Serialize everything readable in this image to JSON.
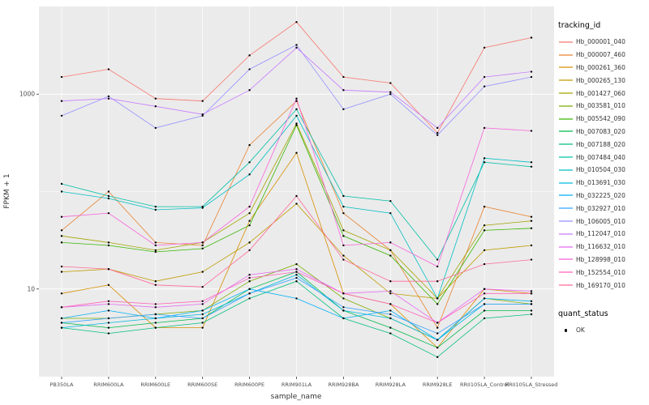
{
  "figure": {
    "background": "#FFFFFF",
    "panel_background": "#EBEBEB",
    "grid_color": "#FFFFFF",
    "tick_color": "#333333",
    "label_color": "#4D4D4D",
    "point_color": "#000000"
  },
  "axes": {
    "x_label": "sample_name",
    "y_label": "FPKM + 1",
    "y_tick_labels": [
      "10",
      "1000"
    ]
  },
  "legend": {
    "tracking_title": "tracking_id",
    "quant_title": "quant_status",
    "quant_items": [
      {
        "label": "OK"
      }
    ]
  },
  "chart_data": {
    "type": "line",
    "title": "",
    "xlabel": "sample_name",
    "ylabel": "FPKM + 1",
    "y_scale": "log10",
    "ylog_range": [
      0.1,
      3.9
    ],
    "y_major_log10": [
      1,
      3
    ],
    "y_minor_log10": [
      0,
      2,
      4
    ],
    "y_ticks": [
      10,
      1000
    ],
    "grid": true,
    "legend_position": "right",
    "x_categories": [
      "PB350LA",
      "RRIM600LA",
      "RRIM600LE",
      "RRIM600SE",
      "RRIM600PE",
      "RRIM901LA",
      "RRIM928BA",
      "RRIM928LA",
      "RRIM928LE",
      "RRII105LA_Control",
      "RRII105LA_Stressed"
    ],
    "series": [
      {
        "name": "Hb_000001_040",
        "color": "#F8766D",
        "values": [
          1500,
          1800,
          900,
          850,
          2500,
          5500,
          1500,
          1300,
          400,
          3000,
          3800
        ]
      },
      {
        "name": "Hb_000007_460",
        "color": "#EA8331",
        "values": [
          40,
          100,
          30,
          28,
          300,
          850,
          60,
          25,
          4,
          70,
          55
        ]
      },
      {
        "name": "Hb_000261_360",
        "color": "#D89000",
        "values": [
          9,
          11,
          4,
          4,
          50,
          250,
          9,
          7,
          2.5,
          10,
          9
        ]
      },
      {
        "name": "Hb_000265_130",
        "color": "#C09B00",
        "values": [
          15,
          16,
          12,
          15,
          30,
          75,
          22,
          9,
          8,
          25,
          28
        ]
      },
      {
        "name": "Hb_001427_060",
        "color": "#A3A500",
        "values": [
          35,
          30,
          25,
          30,
          60,
          500,
          40,
          25,
          8,
          45,
          50
        ]
      },
      {
        "name": "Hb_003581_010",
        "color": "#7CAE00",
        "values": [
          5,
          5,
          5.5,
          6,
          12,
          18,
          8,
          5,
          3,
          8,
          7
        ]
      },
      {
        "name": "Hb_005542_090",
        "color": "#39B600",
        "values": [
          30,
          28,
          24,
          26,
          45,
          480,
          35,
          22,
          7,
          40,
          42
        ]
      },
      {
        "name": "Hb_007083_020",
        "color": "#00BB4E",
        "values": [
          4.5,
          4,
          4.5,
          5,
          10,
          15,
          6,
          4,
          2.5,
          6,
          6
        ]
      },
      {
        "name": "Hb_007188_020",
        "color": "#00BF7D",
        "values": [
          4,
          3.5,
          4,
          4.5,
          8,
          12,
          5,
          3.5,
          2,
          5,
          5.5
        ]
      },
      {
        "name": "Hb_007484_040",
        "color": "#00C1A7",
        "values": [
          120,
          90,
          70,
          70,
          200,
          700,
          90,
          80,
          20,
          200,
          180
        ]
      },
      {
        "name": "Hb_010504_030",
        "color": "#00BFC4",
        "values": [
          100,
          85,
          65,
          68,
          150,
          600,
          70,
          60,
          8,
          220,
          200
        ]
      },
      {
        "name": "Hb_013691_030",
        "color": "#00BAE0",
        "values": [
          4,
          4.5,
          5,
          5.5,
          9,
          14,
          6,
          5,
          3,
          7,
          7
        ]
      },
      {
        "name": "Hb_032225_020",
        "color": "#00B0F6",
        "values": [
          5,
          6,
          5,
          6,
          10,
          8,
          5,
          6,
          3,
          8,
          7.5
        ]
      },
      {
        "name": "Hb_032927_010",
        "color": "#35A2FF",
        "values": [
          4.5,
          5,
          5.5,
          5,
          9,
          13,
          6.5,
          5.5,
          3.5,
          7,
          7
        ]
      },
      {
        "name": "Hb_106005_010",
        "color": "#9590FF",
        "values": [
          600,
          950,
          450,
          600,
          1800,
          3200,
          700,
          1000,
          380,
          1200,
          1500
        ]
      },
      {
        "name": "Hb_112047_010",
        "color": "#C77CFF",
        "values": [
          850,
          900,
          750,
          620,
          1100,
          3000,
          1100,
          1050,
          450,
          1500,
          1700
        ]
      },
      {
        "name": "Hb_116632_010",
        "color": "#E76BF3",
        "values": [
          6.5,
          7,
          6.5,
          7,
          14,
          16,
          9,
          9.5,
          4.5,
          10,
          9.5
        ]
      },
      {
        "name": "Hb_128998_010",
        "color": "#FA62DB",
        "values": [
          55,
          60,
          28,
          30,
          70,
          900,
          28,
          30,
          17,
          450,
          420
        ]
      },
      {
        "name": "Hb_152554_010",
        "color": "#FF62BC",
        "values": [
          6.5,
          7.5,
          7,
          7.5,
          13,
          15,
          9,
          7,
          4.5,
          9,
          9
        ]
      },
      {
        "name": "Hb_169170_010",
        "color": "#FF6A98",
        "values": [
          17,
          16,
          11,
          10.5,
          25,
          90,
          20,
          12,
          12,
          18,
          20
        ]
      }
    ]
  }
}
